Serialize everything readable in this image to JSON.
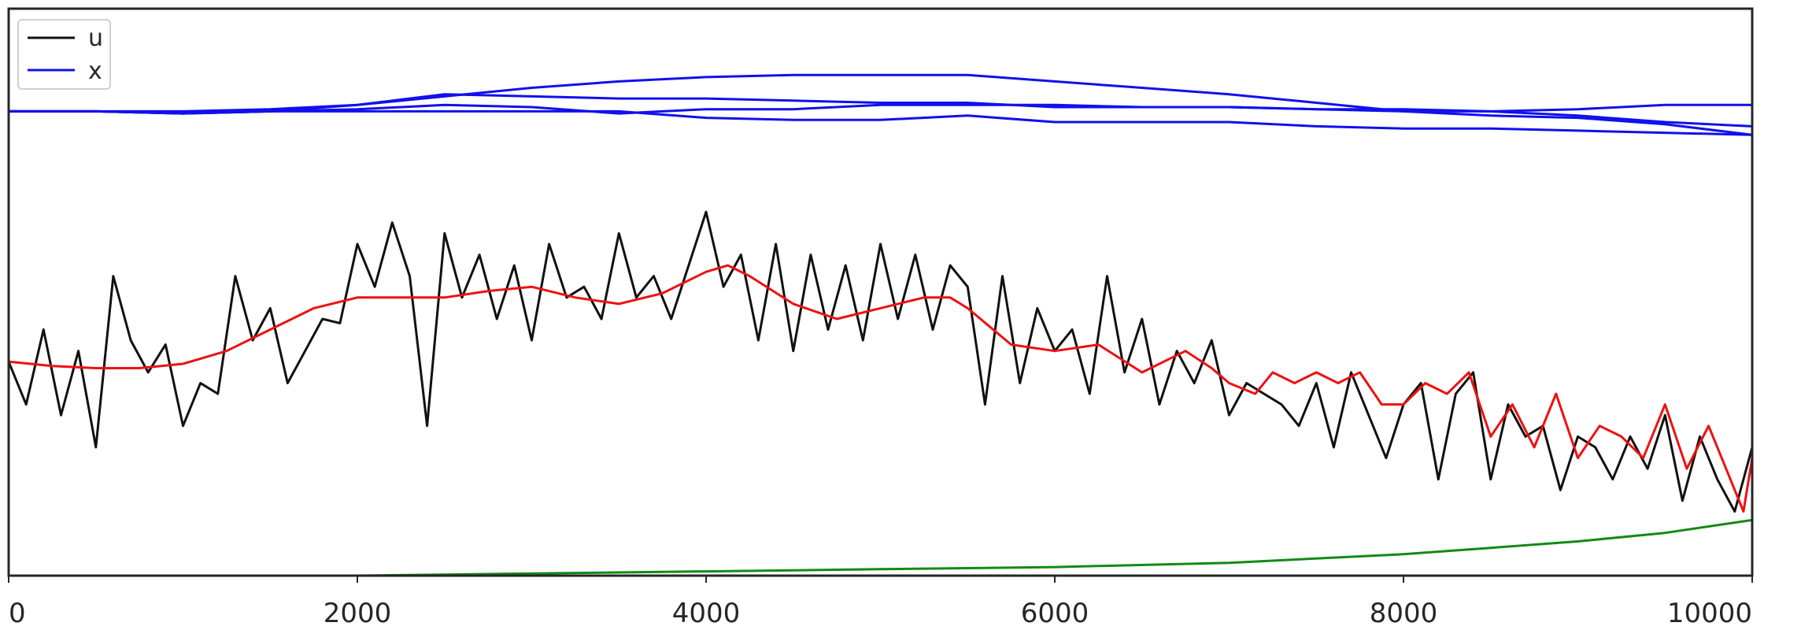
{
  "chart_data": {
    "type": "line",
    "title": "",
    "xlabel": "",
    "ylabel": "",
    "xlim": [
      0,
      10000
    ],
    "ylim": [
      -1.0,
      1.65
    ],
    "grid": false,
    "legend": {
      "placement": "top-left",
      "entries": [
        {
          "label": "u",
          "color": "#111111"
        },
        {
          "label": "x",
          "color": "#1010ee"
        }
      ]
    },
    "xticks": [
      {
        "value": 0,
        "label": "0"
      },
      {
        "value": 2000,
        "label": "2000"
      },
      {
        "value": 4000,
        "label": "4000"
      },
      {
        "value": 6000,
        "label": "6000"
      },
      {
        "value": 8000,
        "label": "8000"
      },
      {
        "value": 10000,
        "label": "10000"
      }
    ],
    "series": [
      {
        "name": "u",
        "color": "#111111",
        "x": [
          0,
          100,
          200,
          300,
          400,
          500,
          600,
          700,
          800,
          900,
          1000,
          1100,
          1200,
          1300,
          1400,
          1500,
          1600,
          1700,
          1800,
          1900,
          2000,
          2100,
          2200,
          2300,
          2400,
          2500,
          2600,
          2700,
          2800,
          2900,
          3000,
          3100,
          3200,
          3300,
          3400,
          3500,
          3600,
          3700,
          3800,
          3900,
          4000,
          4100,
          4200,
          4300,
          4400,
          4500,
          4600,
          4700,
          4800,
          4900,
          5000,
          5100,
          5200,
          5300,
          5400,
          5500,
          5600,
          5700,
          5800,
          5900,
          6000,
          6100,
          6200,
          6300,
          6400,
          6500,
          6600,
          6700,
          6800,
          6900,
          7000,
          7100,
          7200,
          7300,
          7400,
          7500,
          7600,
          7700,
          7800,
          7900,
          8000,
          8100,
          8200,
          8300,
          8400,
          8500,
          8600,
          8700,
          8800,
          8900,
          9000,
          9100,
          9200,
          9300,
          9400,
          9500,
          9600,
          9700,
          9800,
          9900,
          10000
        ],
        "y": [
          0.0,
          -0.2,
          0.15,
          -0.25,
          0.05,
          -0.4,
          0.4,
          0.1,
          -0.05,
          0.08,
          -0.3,
          -0.1,
          -0.15,
          0.4,
          0.1,
          0.25,
          -0.1,
          0.05,
          0.2,
          0.18,
          0.55,
          0.35,
          0.65,
          0.4,
          -0.3,
          0.6,
          0.3,
          0.5,
          0.2,
          0.45,
          0.1,
          0.55,
          0.3,
          0.35,
          0.2,
          0.6,
          0.3,
          0.4,
          0.2,
          0.45,
          0.7,
          0.35,
          0.5,
          0.1,
          0.55,
          0.05,
          0.5,
          0.15,
          0.45,
          0.1,
          0.55,
          0.2,
          0.5,
          0.15,
          0.45,
          0.35,
          -0.2,
          0.4,
          -0.1,
          0.25,
          0.05,
          0.15,
          -0.15,
          0.4,
          -0.05,
          0.2,
          -0.2,
          0.05,
          -0.1,
          0.1,
          -0.25,
          -0.1,
          -0.15,
          -0.2,
          -0.3,
          -0.1,
          -0.4,
          -0.05,
          -0.25,
          -0.45,
          -0.2,
          -0.1,
          -0.55,
          -0.15,
          -0.05,
          -0.55,
          -0.2,
          -0.35,
          -0.3,
          -0.6,
          -0.35,
          -0.4,
          -0.55,
          -0.35,
          -0.5,
          -0.25,
          -0.65,
          -0.35,
          -0.55,
          -0.7,
          -0.4
        ]
      },
      {
        "name": "",
        "color": "#ee1111",
        "x": [
          0,
          250,
          500,
          750,
          1000,
          1250,
          1500,
          1750,
          2000,
          2250,
          2500,
          2750,
          3000,
          3250,
          3500,
          3750,
          4000,
          4125,
          4250,
          4500,
          4750,
          5000,
          5250,
          5400,
          5500,
          5750,
          6000,
          6250,
          6500,
          6750,
          6900,
          7000,
          7150,
          7250,
          7375,
          7500,
          7625,
          7750,
          7875,
          8000,
          8125,
          8250,
          8375,
          8500,
          8625,
          8750,
          8875,
          9000,
          9125,
          9250,
          9375,
          9500,
          9625,
          9750,
          9875,
          9950,
          10000
        ],
        "y": [
          0.0,
          -0.02,
          -0.03,
          -0.03,
          -0.01,
          0.05,
          0.15,
          0.25,
          0.3,
          0.3,
          0.3,
          0.33,
          0.35,
          0.3,
          0.27,
          0.32,
          0.42,
          0.45,
          0.4,
          0.27,
          0.2,
          0.25,
          0.3,
          0.3,
          0.25,
          0.08,
          0.05,
          0.08,
          -0.05,
          0.05,
          -0.03,
          -0.1,
          -0.15,
          -0.05,
          -0.1,
          -0.05,
          -0.1,
          -0.05,
          -0.2,
          -0.2,
          -0.1,
          -0.15,
          -0.05,
          -0.35,
          -0.2,
          -0.4,
          -0.15,
          -0.45,
          -0.3,
          -0.35,
          -0.45,
          -0.2,
          -0.5,
          -0.3,
          -0.55,
          -0.7,
          -0.45
        ]
      },
      {
        "name": "x",
        "color": "#1010ee",
        "x": [
          0,
          500,
          1000,
          1500,
          2000,
          2500,
          3000,
          3500,
          4000,
          4500,
          5000,
          5500,
          6000,
          6500,
          7000,
          7500,
          8000,
          8500,
          9000,
          9500,
          10000
        ],
        "y": [
          1.17,
          1.17,
          1.17,
          1.18,
          1.2,
          1.24,
          1.28,
          1.31,
          1.33,
          1.34,
          1.34,
          1.34,
          1.31,
          1.28,
          1.25,
          1.21,
          1.17,
          1.15,
          1.14,
          1.11,
          1.06
        ]
      },
      {
        "name": "",
        "color": "#1010ee",
        "x": [
          0,
          500,
          1000,
          1500,
          2000,
          2500,
          3000,
          3500,
          4000,
          4500,
          5000,
          5500,
          6000,
          6500,
          7000,
          7500,
          8000,
          8500,
          9000,
          9500,
          10000
        ],
        "y": [
          1.17,
          1.17,
          1.16,
          1.17,
          1.2,
          1.25,
          1.24,
          1.23,
          1.23,
          1.22,
          1.21,
          1.21,
          1.19,
          1.19,
          1.19,
          1.18,
          1.18,
          1.17,
          1.15,
          1.12,
          1.1
        ]
      },
      {
        "name": "",
        "color": "#1010ee",
        "x": [
          0,
          500,
          1000,
          1500,
          2000,
          2500,
          3000,
          3500,
          4000,
          4500,
          5000,
          5500,
          6000,
          6500,
          7000,
          7500,
          8000,
          8500,
          9000,
          9500,
          10000
        ],
        "y": [
          1.17,
          1.17,
          1.16,
          1.17,
          1.18,
          1.2,
          1.19,
          1.16,
          1.18,
          1.18,
          1.2,
          1.2,
          1.2,
          1.19,
          1.19,
          1.18,
          1.17,
          1.17,
          1.18,
          1.2,
          1.2
        ]
      },
      {
        "name": "",
        "color": "#1010ee",
        "x": [
          0,
          500,
          1000,
          1500,
          2000,
          2500,
          3000,
          3500,
          4000,
          4500,
          5000,
          5500,
          6000,
          6500,
          7000,
          7500,
          8000,
          8500,
          9000,
          9500,
          10000
        ],
        "y": [
          1.17,
          1.17,
          1.16,
          1.17,
          1.17,
          1.17,
          1.17,
          1.17,
          1.14,
          1.13,
          1.13,
          1.15,
          1.12,
          1.12,
          1.12,
          1.1,
          1.09,
          1.09,
          1.08,
          1.07,
          1.06
        ]
      },
      {
        "name": "",
        "color": "#138a13",
        "x": [
          0,
          1000,
          2000,
          3000,
          4000,
          5000,
          6000,
          7000,
          8000,
          8500,
          9000,
          9500,
          10000
        ],
        "y": [
          -1.0,
          -1.0,
          -1.0,
          -0.99,
          -0.98,
          -0.97,
          -0.96,
          -0.94,
          -0.9,
          -0.87,
          -0.84,
          -0.8,
          -0.74
        ]
      }
    ]
  }
}
